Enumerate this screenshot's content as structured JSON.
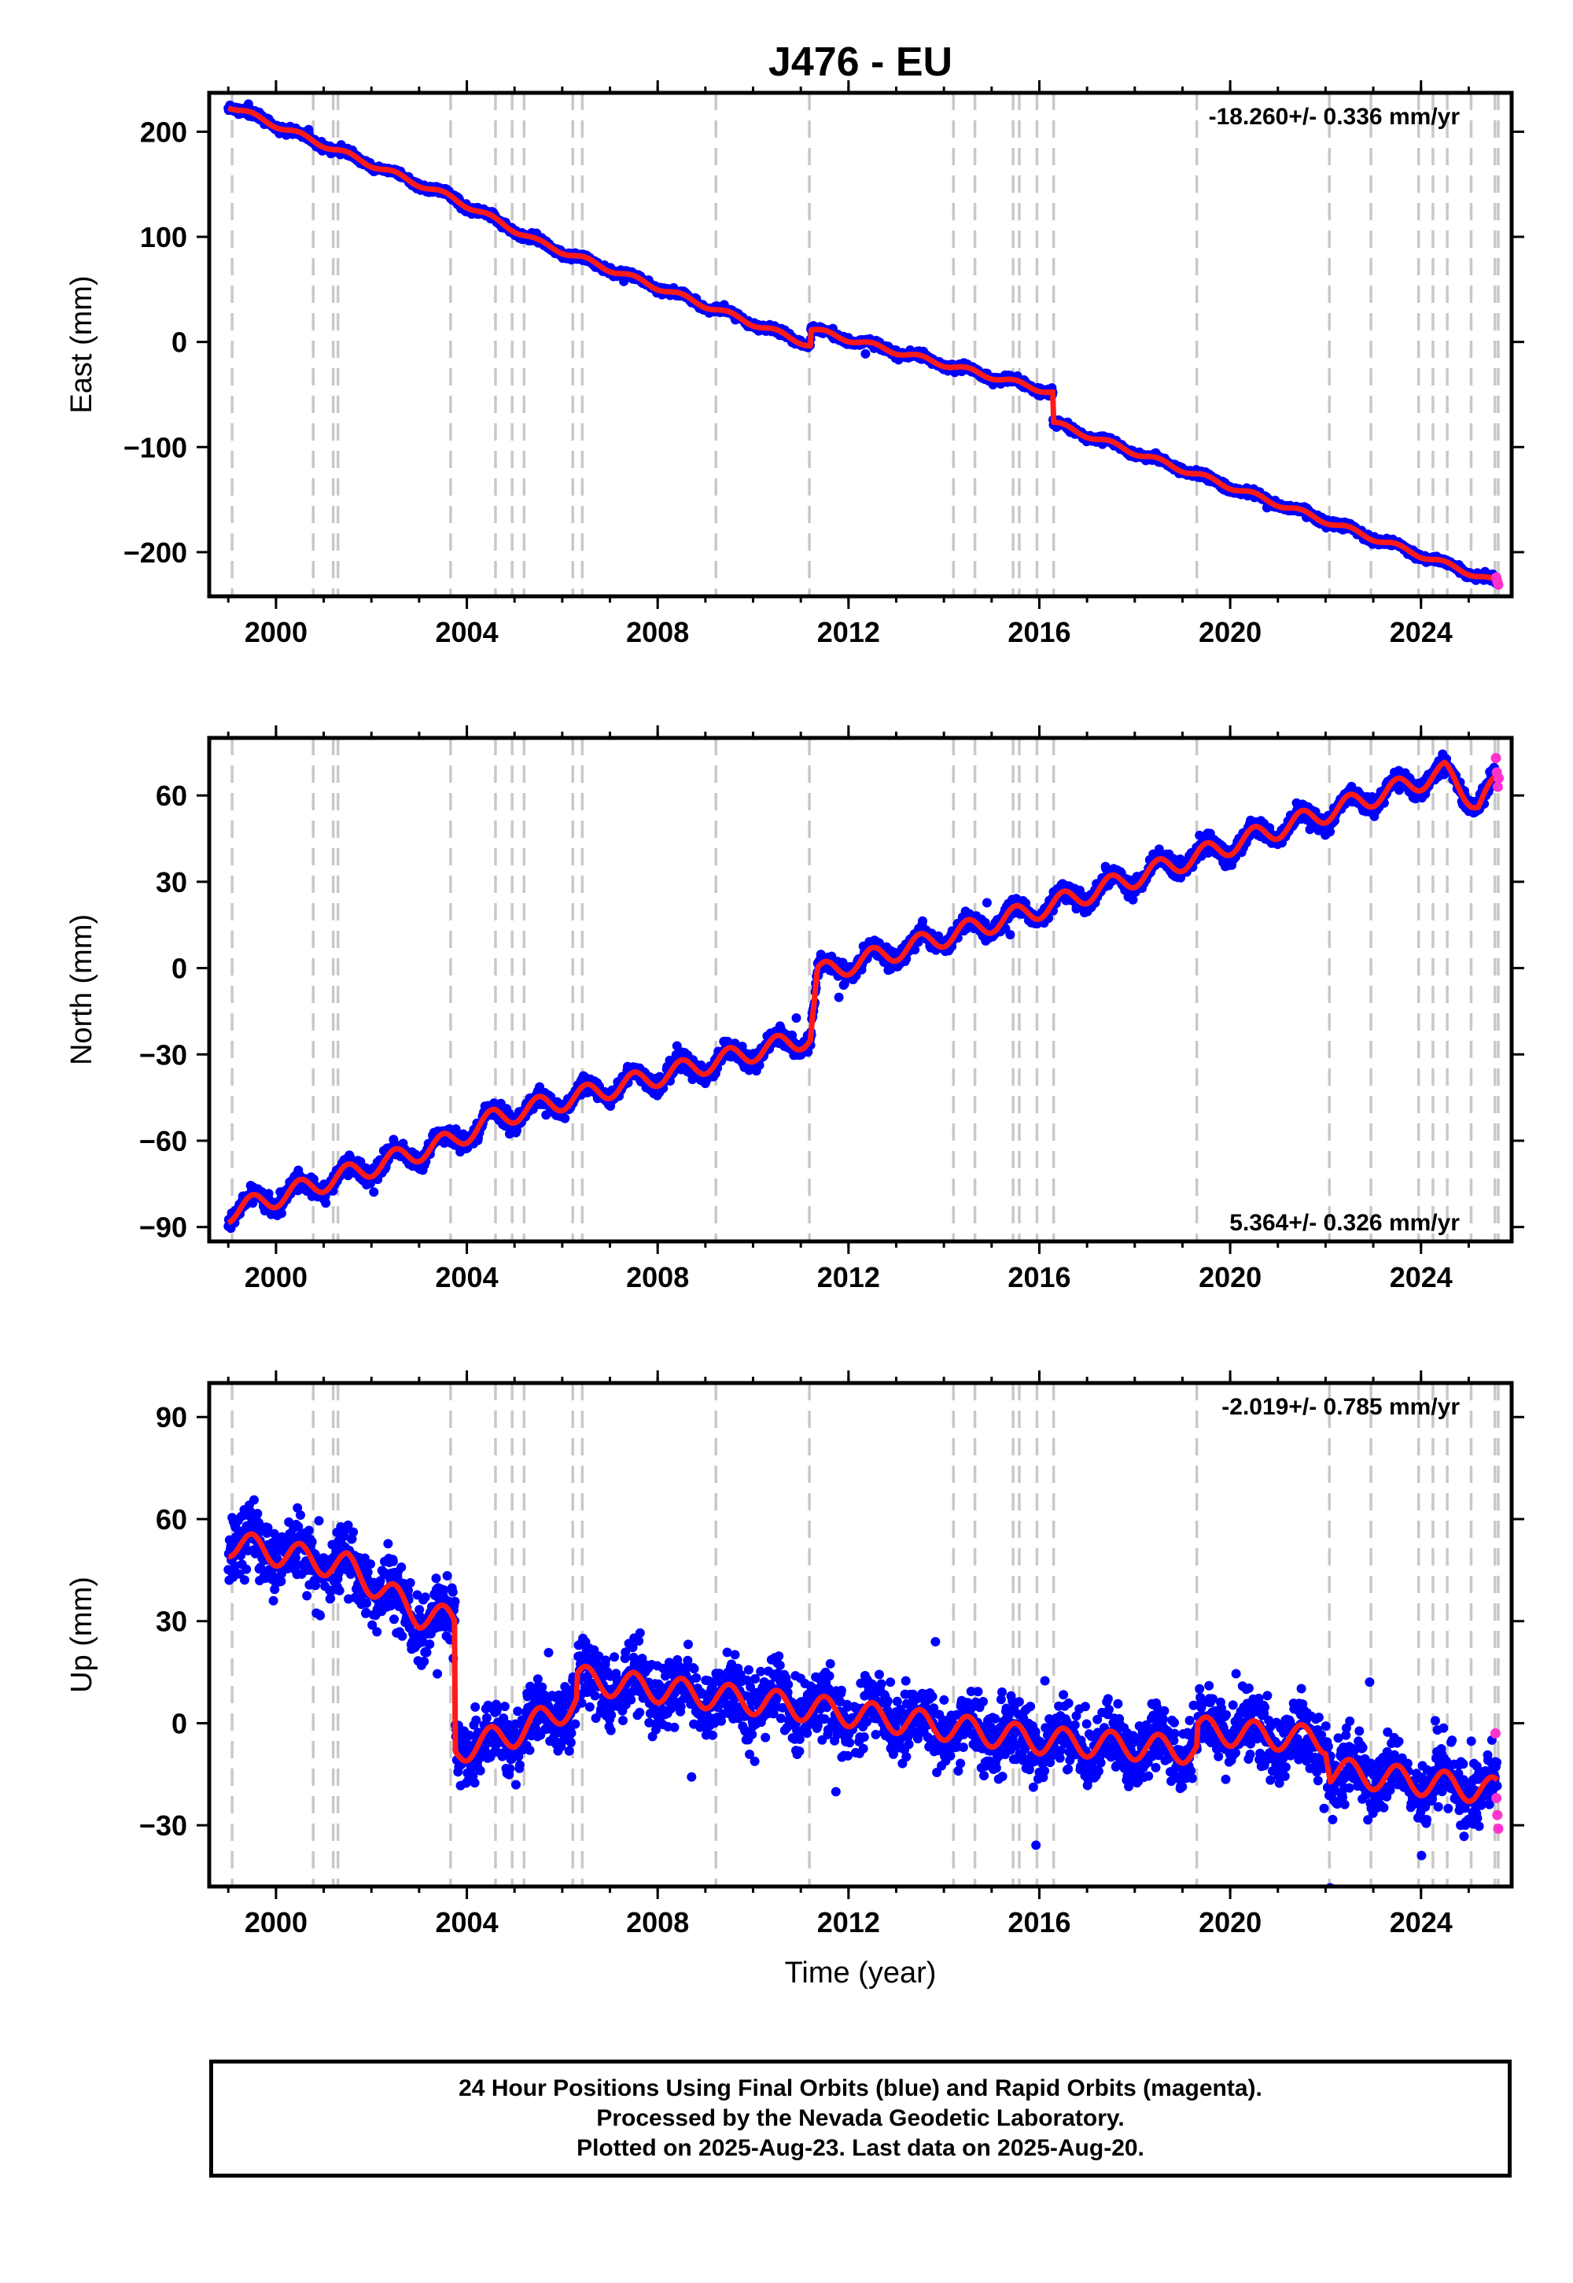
{
  "title": "J476 - EU",
  "footer": {
    "line1": "24 Hour Positions Using Final Orbits (blue) and Rapid Orbits (magenta).",
    "line2": "Processed by the Nevada Geodetic Laboratory.",
    "line3": "Plotted on 2025-Aug-23. Last data on 2025-Aug-20."
  },
  "colors": {
    "final_orbits": "#0000ff",
    "rapid_orbits": "#ff33cc",
    "model": "#ff1a1a",
    "event_lines": "#c8c8c8"
  },
  "chart_data": [
    {
      "type": "scatter",
      "title": "",
      "ylabel": "East (mm)",
      "xlabel": "",
      "xlim": [
        1998.6,
        2025.9
      ],
      "ylim": [
        -242,
        237
      ],
      "xticks": [
        2000,
        2004,
        2008,
        2012,
        2016,
        2020,
        2024
      ],
      "yticks": [
        200,
        100,
        0,
        -100,
        -200
      ],
      "grid": false,
      "annotation": {
        "text": "-18.260+/- 0.336 mm/yr",
        "placement": "top-right"
      },
      "series": [
        {
          "kind": "final-orbit-positions",
          "color": "#0000ff",
          "noise": 2.5,
          "trend": [
            [
              1999.0,
              225
            ],
            [
              2003.7,
              137
            ],
            [
              2005.5,
              95
            ],
            [
              2011.2,
              -3
            ],
            [
              2011.21,
              12
            ],
            [
              2016.28,
              -48
            ],
            [
              2016.29,
              -77
            ],
            [
              2025.6,
              -229
            ]
          ]
        },
        {
          "kind": "rapid-orbit-positions",
          "color": "#ff33cc",
          "x": [
            2025.58,
            2025.6,
            2025.62
          ],
          "y": [
            -224,
            -228,
            -231
          ]
        },
        {
          "kind": "model-fit",
          "color": "#ff1a1a",
          "seasonal_amplitude": 2.5,
          "trend": [
            [
              1999.0,
              225
            ],
            [
              2003.7,
              137
            ],
            [
              2005.5,
              95
            ],
            [
              2011.2,
              -3
            ],
            [
              2011.21,
              12
            ],
            [
              2016.28,
              -48
            ],
            [
              2016.29,
              -77
            ],
            [
              2025.6,
              -229
            ]
          ]
        }
      ]
    },
    {
      "type": "scatter",
      "title": "",
      "ylabel": "North (mm)",
      "xlabel": "",
      "xlim": [
        1998.6,
        2025.9
      ],
      "ylim": [
        -95,
        80
      ],
      "xticks": [
        2000,
        2004,
        2008,
        2012,
        2016,
        2020,
        2024
      ],
      "yticks": [
        60,
        30,
        0,
        -30,
        -60,
        -90
      ],
      "grid": false,
      "annotation": {
        "text": "5.364+/- 0.326 mm/yr",
        "placement": "bottom-right"
      },
      "series": [
        {
          "kind": "final-orbit-positions",
          "color": "#0000ff",
          "noise": 2.2,
          "trend": [
            [
              1999.0,
              -85
            ],
            [
              2003.7,
              -60
            ],
            [
              2004.6,
              -52
            ],
            [
              2011.2,
              -24
            ],
            [
              2011.35,
              -2
            ],
            [
              2016.3,
              22
            ],
            [
              2024.5,
              68
            ],
            [
              2025.2,
              57
            ],
            [
              2025.6,
              64
            ]
          ]
        },
        {
          "kind": "rapid-orbit-positions",
          "color": "#ff33cc",
          "x": [
            2025.57,
            2025.59,
            2025.61,
            2025.63
          ],
          "y": [
            73,
            68,
            63,
            66
          ]
        },
        {
          "kind": "model-fit",
          "color": "#ff1a1a",
          "seasonal_amplitude": 3.5,
          "trend": [
            [
              1999.0,
              -85
            ],
            [
              2003.7,
              -60
            ],
            [
              2004.6,
              -52
            ],
            [
              2011.2,
              -24
            ],
            [
              2011.35,
              -2
            ],
            [
              2016.3,
              22
            ],
            [
              2024.5,
              68
            ],
            [
              2025.2,
              57
            ],
            [
              2025.6,
              64
            ]
          ]
        }
      ]
    },
    {
      "type": "scatter",
      "title": "",
      "ylabel": "Up (mm)",
      "xlabel": "Time (year)",
      "xlim": [
        1998.6,
        2025.9
      ],
      "ylim": [
        -48,
        100
      ],
      "xticks": [
        2000,
        2004,
        2008,
        2012,
        2016,
        2020,
        2024
      ],
      "yticks": [
        90,
        60,
        30,
        0,
        -30
      ],
      "grid": false,
      "annotation": {
        "text": "-2.019+/- 0.785 mm/yr",
        "placement": "top-right"
      },
      "series": [
        {
          "kind": "final-orbit-positions",
          "color": "#0000ff",
          "noise": 7,
          "trend": [
            [
              1999.0,
              53
            ],
            [
              2001.5,
              46
            ],
            [
              2003.0,
              32
            ],
            [
              2003.75,
              30
            ],
            [
              2003.76,
              -8
            ],
            [
              2005.0,
              -3
            ],
            [
              2006.3,
              6
            ],
            [
              2006.31,
              13
            ],
            [
              2012.0,
              3
            ],
            [
              2016.0,
              -5
            ],
            [
              2019.3,
              -8
            ],
            [
              2019.31,
              -2
            ],
            [
              2022.0,
              -5
            ],
            [
              2022.1,
              -14
            ],
            [
              2025.6,
              -20
            ]
          ]
        },
        {
          "kind": "rapid-orbit-positions",
          "color": "#ff33cc",
          "x": [
            2025.56,
            2025.58,
            2025.6,
            2025.62
          ],
          "y": [
            -3,
            -22,
            -27,
            -31
          ]
        },
        {
          "kind": "model-fit",
          "color": "#ff1a1a",
          "seasonal_amplitude": 4,
          "trend": [
            [
              1999.0,
              53
            ],
            [
              2001.5,
              46
            ],
            [
              2003.0,
              32
            ],
            [
              2003.75,
              30
            ],
            [
              2003.76,
              -8
            ],
            [
              2005.0,
              -3
            ],
            [
              2006.3,
              6
            ],
            [
              2006.31,
              13
            ],
            [
              2012.0,
              3
            ],
            [
              2016.0,
              -5
            ],
            [
              2019.3,
              -8
            ],
            [
              2019.31,
              -2
            ],
            [
              2022.0,
              -5
            ],
            [
              2022.1,
              -14
            ],
            [
              2025.6,
              -20
            ]
          ]
        }
      ]
    }
  ],
  "event_lines_years": [
    1999.08,
    2000.78,
    2001.2,
    2001.3,
    2003.66,
    2004.6,
    2004.95,
    2005.2,
    2006.22,
    2006.42,
    2009.22,
    2011.18,
    2014.2,
    2014.65,
    2015.45,
    2015.58,
    2015.95,
    2016.3,
    2019.3,
    2022.08,
    2022.95,
    2023.95,
    2024.25,
    2024.55,
    2025.05,
    2025.55,
    2025.62
  ]
}
